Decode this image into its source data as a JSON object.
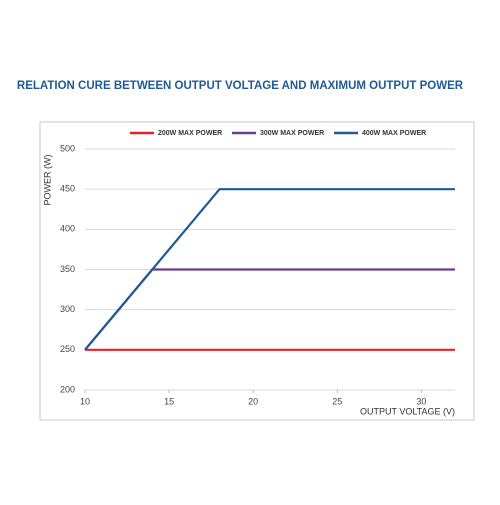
{
  "chart_data": {
    "type": "line",
    "title": "RELATION CURE BETWEEN OUTPUT VOLTAGE AND MAXIMUM OUTPUT POWER",
    "x_label": "OUTPUT VOLTAGE (V)",
    "y_label": "POWER (W)",
    "xlim": [
      10,
      32
    ],
    "xticks": [
      10,
      15,
      20,
      25,
      30
    ],
    "ylim": [
      200,
      500
    ],
    "yticks": [
      200,
      250,
      300,
      350,
      400,
      450,
      500
    ],
    "grid": true,
    "legend": "top",
    "series": [
      {
        "name": "200W MAX POWER",
        "color": "#e8202a",
        "x": [
          10,
          32
        ],
        "values": [
          250,
          250
        ]
      },
      {
        "name": "300W MAX POWER",
        "color": "#6a3d8f",
        "x": [
          10,
          14,
          32
        ],
        "values": [
          250,
          350,
          350
        ]
      },
      {
        "name": "400W MAX POWER",
        "color": "#1f5a96",
        "x": [
          10,
          18,
          32
        ],
        "values": [
          250,
          450,
          450
        ]
      }
    ]
  }
}
